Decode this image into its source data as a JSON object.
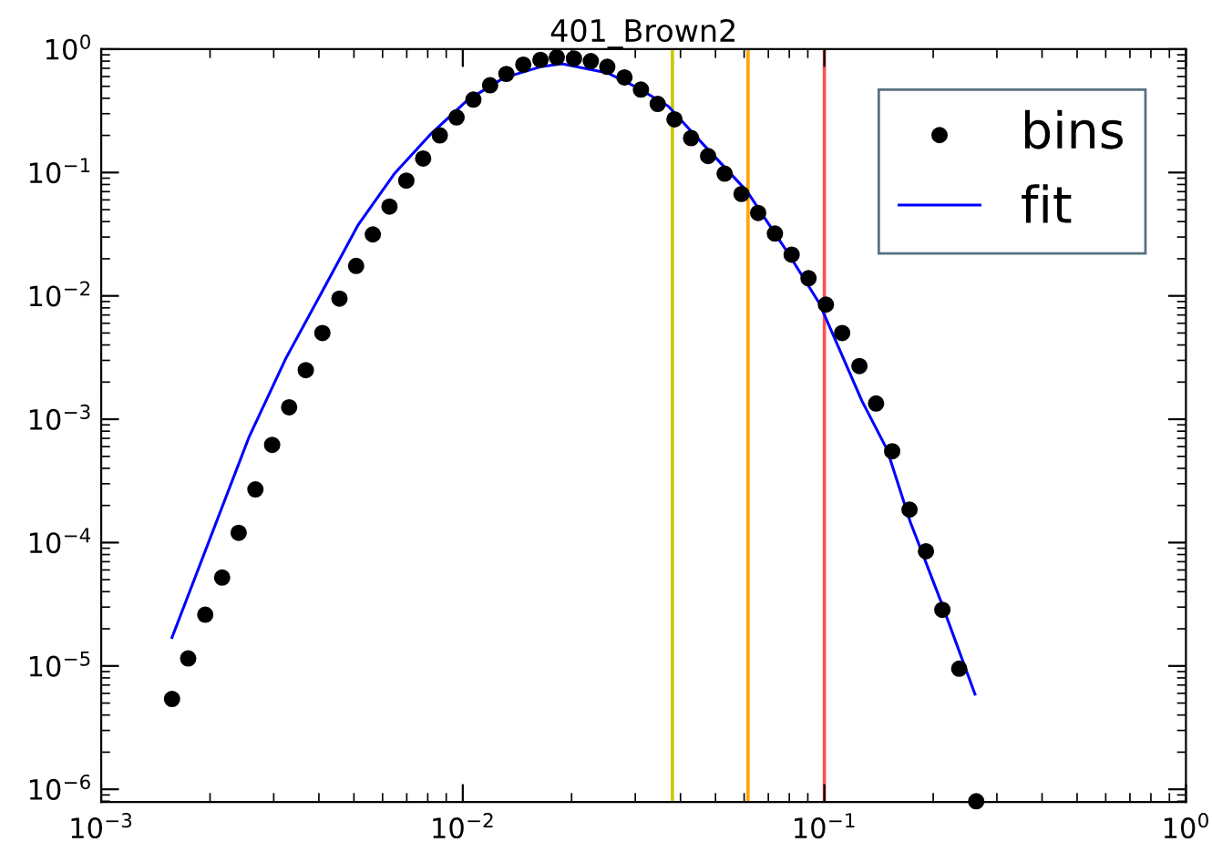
{
  "chart_data": {
    "type": "scatter",
    "title": "401_Brown2",
    "log": "xy",
    "grid": false,
    "legend": "top right",
    "xlim": [
      0.001,
      1
    ],
    "ylim": [
      7.9e-07,
      1
    ],
    "xticks": [
      {
        "value": 0.001,
        "label": "10$^{−3}$"
      },
      {
        "value": 0.01,
        "label": "10$^{−2}$"
      },
      {
        "value": 0.1,
        "label": "10$^{−1}$"
      },
      {
        "value": 1,
        "label": "10$^{0}$"
      }
    ],
    "yticks": [
      {
        "value": 1e-06,
        "label": "10$^{−6}$"
      },
      {
        "value": 1e-05,
        "label": "10$^{−5}$"
      },
      {
        "value": 0.0001,
        "label": "10$^{−4}$"
      },
      {
        "value": 0.001,
        "label": "10$^{−3}$"
      },
      {
        "value": 0.01,
        "label": "10$^{−2}$"
      },
      {
        "value": 0.1,
        "label": "10$^{−1}$"
      },
      {
        "value": 1,
        "label": "10$^{0}$"
      }
    ],
    "series": [
      {
        "name": "bins",
        "marker": "circle",
        "color": "#000000",
        "x": [
          0.00157,
          0.00174,
          0.00194,
          0.00216,
          0.0024,
          0.00267,
          0.00297,
          0.00331,
          0.00368,
          0.00409,
          0.00456,
          0.00507,
          0.00564,
          0.00627,
          0.00698,
          0.00777,
          0.00864,
          0.00961,
          0.0107,
          0.0119,
          0.0132,
          0.0147,
          0.0164,
          0.0182,
          0.0203,
          0.0226,
          0.0251,
          0.028,
          0.0311,
          0.0346,
          0.0385,
          0.0428,
          0.0477,
          0.053,
          0.059,
          0.0656,
          0.073,
          0.0812,
          0.0904,
          0.101,
          0.112,
          0.125,
          0.139,
          0.154,
          0.172,
          0.191,
          0.212,
          0.236,
          0.263
        ],
        "values": [
          5.4e-06,
          1.15e-05,
          2.6e-05,
          5.2e-05,
          0.00012,
          0.00027,
          0.00062,
          0.00125,
          0.0025,
          0.005,
          0.0095,
          0.0175,
          0.0315,
          0.053,
          0.086,
          0.13,
          0.2,
          0.28,
          0.39,
          0.51,
          0.63,
          0.75,
          0.82,
          0.86,
          0.84,
          0.8,
          0.72,
          0.59,
          0.47,
          0.36,
          0.27,
          0.19,
          0.136,
          0.098,
          0.067,
          0.047,
          0.032,
          0.0216,
          0.0139,
          0.0085,
          0.005,
          0.0027,
          0.00134,
          0.00055,
          0.000185,
          8.5e-05,
          2.85e-05,
          9.5e-06,
          8e-07
        ]
      },
      {
        "name": "fit",
        "type": "line",
        "line_style": "solid",
        "color": "#0000ff",
        "x": [
          0.00157,
          0.00256,
          0.00324,
          0.00408,
          0.00514,
          0.00649,
          0.00818,
          0.0103,
          0.013,
          0.0164,
          0.0188,
          0.0251,
          0.0305,
          0.037,
          0.0466,
          0.0611,
          0.08,
          0.097,
          0.127,
          0.149,
          0.173,
          0.21,
          0.261
        ],
        "values": [
          1.7e-05,
          0.00071,
          0.00311,
          0.0108,
          0.0378,
          0.099,
          0.207,
          0.386,
          0.586,
          0.719,
          0.762,
          0.643,
          0.485,
          0.345,
          0.165,
          0.0705,
          0.0214,
          0.00864,
          0.00141,
          0.00057,
          0.000146,
          3.34e-05,
          5.9e-06
        ]
      }
    ],
    "ref_lines": [
      {
        "axis": "x",
        "value": 0.038,
        "color": "#c8c800"
      },
      {
        "axis": "x",
        "value": 0.0615,
        "color": "#ffa500"
      },
      {
        "axis": "x",
        "value": 0.1,
        "color": "#ff5050"
      }
    ]
  }
}
